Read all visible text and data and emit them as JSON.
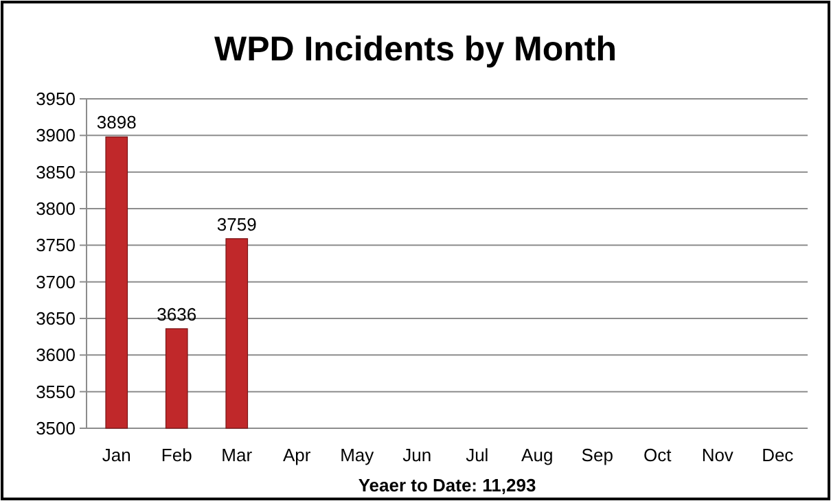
{
  "chart_data": {
    "type": "bar",
    "title": "WPD Incidents by Month",
    "xlabel": "Yeaer to Date: 11,293",
    "categories": [
      "Jan",
      "Feb",
      "Mar",
      "Apr",
      "May",
      "Jun",
      "Jul",
      "Aug",
      "Sep",
      "Oct",
      "Nov",
      "Dec"
    ],
    "values": [
      3898,
      3636,
      3759,
      null,
      null,
      null,
      null,
      null,
      null,
      null,
      null,
      null
    ],
    "color": "#c0282a",
    "ylim": [
      3500,
      3950
    ],
    "yticks": [
      3500,
      3550,
      3600,
      3650,
      3700,
      3750,
      3800,
      3850,
      3900,
      3950
    ],
    "grid": "y",
    "data_labels": true
  }
}
